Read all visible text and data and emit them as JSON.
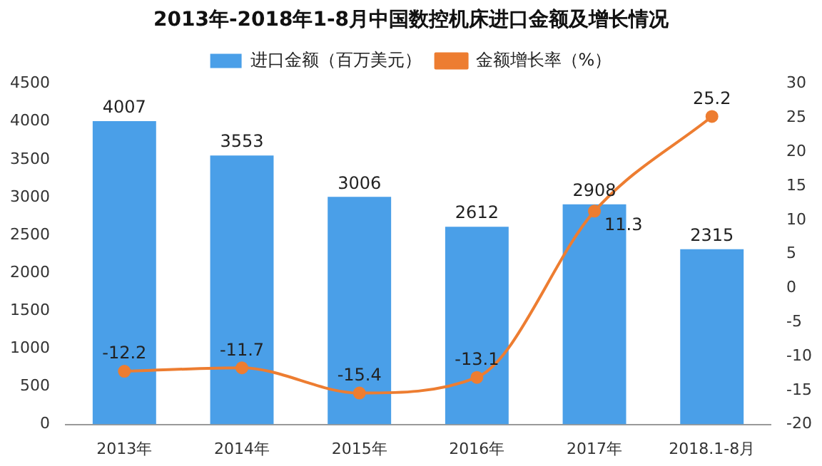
{
  "chart_data": {
    "type": "bar",
    "title": "2013年-2018年1-8月中国数控机床进口金额及增长情况",
    "categories": [
      "2013年",
      "2014年",
      "2015年",
      "2016年",
      "2017年",
      "2018.1-8月"
    ],
    "series": [
      {
        "name": "进口金额（百万美元）",
        "color": "#4a9fe8",
        "values": [
          4007,
          3553,
          3006,
          2612,
          2908,
          2315
        ]
      },
      {
        "name": "金额增长率（%）",
        "type": "line",
        "axis": "y2",
        "color": "#ed7d31",
        "values": [
          -12.2,
          -11.7,
          -15.4,
          -13.1,
          11.3,
          25.2
        ]
      }
    ],
    "ylim": [
      0,
      4500
    ],
    "yticks": [
      0,
      500,
      1000,
      1500,
      2000,
      2500,
      3000,
      3500,
      4000,
      4500
    ],
    "y2lim": [
      -20,
      30
    ],
    "y2ticks": [
      -20,
      -15,
      -10,
      -5,
      0,
      5,
      10,
      15,
      20,
      25,
      30
    ],
    "legend": "top",
    "marker": "circle",
    "data_labels": true,
    "grid": false
  }
}
